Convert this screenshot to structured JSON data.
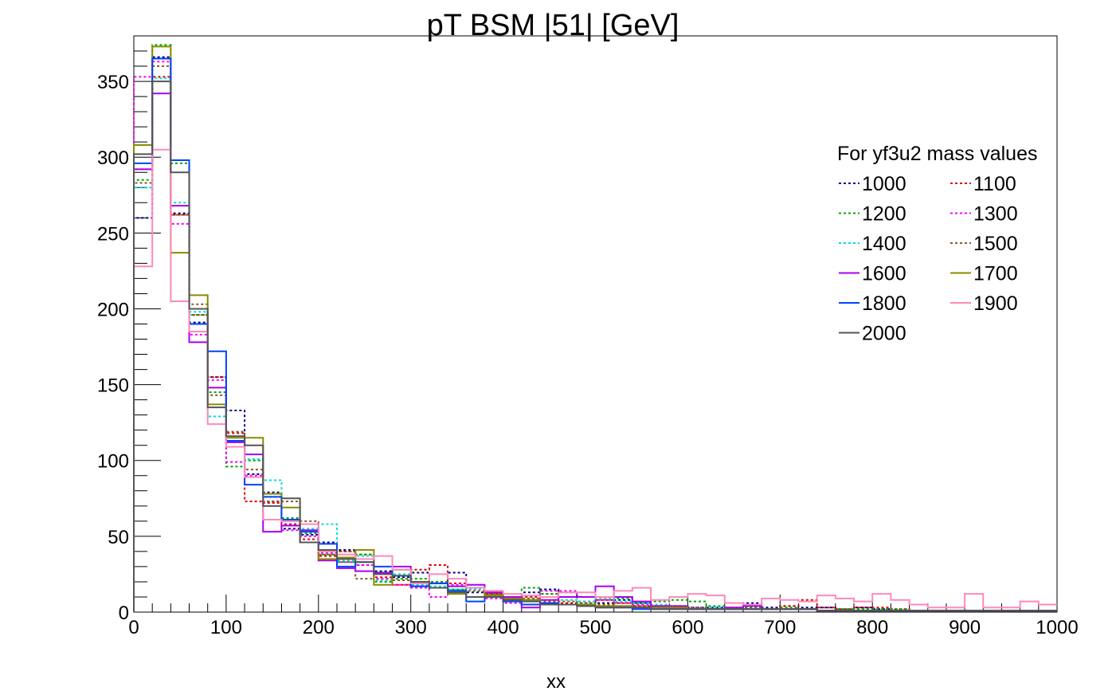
{
  "chart_data": {
    "type": "line",
    "title": "pT BSM |51| [GeV]",
    "xlabel": "xx",
    "ylabel": "",
    "xlim": [
      0,
      1000
    ],
    "ylim": [
      0,
      380
    ],
    "bin_edges": [
      0,
      20,
      40,
      60,
      80,
      100,
      120,
      140,
      160,
      180,
      200,
      220,
      240,
      260,
      280,
      300,
      320,
      340,
      360,
      380,
      400,
      420,
      440,
      460,
      480,
      500,
      520,
      540,
      560,
      580,
      600,
      620,
      640,
      660,
      680,
      700,
      720,
      740,
      760,
      780,
      800,
      820,
      840,
      860,
      880,
      900,
      920,
      940,
      960,
      980,
      1000
    ],
    "x_ticks": [
      0,
      100,
      200,
      300,
      400,
      500,
      600,
      700,
      800,
      900,
      1000
    ],
    "y_ticks": [
      0,
      50,
      100,
      150,
      200,
      250,
      300,
      350
    ],
    "grid": false,
    "legend": {
      "title": "For yf3u2 mass values",
      "placement": "top-right",
      "columns": 2
    },
    "series": [
      {
        "name": "1000",
        "color": "#00008b",
        "dash": "dotted",
        "values": [
          260,
          366,
          263,
          191,
          155,
          133,
          91,
          79,
          55,
          51,
          46,
          41,
          31,
          27,
          23,
          26,
          19,
          26,
          13,
          12,
          8,
          13,
          15,
          13,
          10,
          6,
          8,
          6,
          4,
          4,
          3,
          3,
          2,
          6,
          3,
          4,
          3,
          3,
          2,
          3,
          2,
          1,
          1,
          1,
          1,
          1,
          1,
          1,
          1,
          1
        ]
      },
      {
        "name": "1100",
        "color": "#dd0000",
        "dash": "dotted",
        "values": [
          292,
          353,
          262,
          196,
          155,
          118,
          73,
          72,
          58,
          48,
          37,
          40,
          38,
          23,
          18,
          28,
          31,
          19,
          16,
          12,
          8,
          10,
          12,
          6,
          7,
          8,
          6,
          4,
          4,
          3,
          2,
          3,
          2,
          3,
          2,
          4,
          8,
          3,
          2,
          3,
          3,
          2,
          1,
          1,
          1,
          1,
          1,
          1,
          1,
          1
        ]
      },
      {
        "name": "1200",
        "color": "#00aa00",
        "dash": "dotted",
        "values": [
          285,
          374,
          296,
          196,
          145,
          96,
          100,
          76,
          62,
          52,
          38,
          33,
          38,
          20,
          22,
          22,
          20,
          15,
          16,
          14,
          10,
          16,
          12,
          10,
          6,
          4,
          9,
          6,
          7,
          8,
          7,
          4,
          3,
          3,
          2,
          3,
          2,
          1,
          2,
          2,
          2,
          2,
          1,
          1,
          1,
          1,
          1,
          1,
          1,
          1
        ]
      },
      {
        "name": "1300",
        "color": "#ff00ff",
        "dash": "dotted",
        "values": [
          353,
          363,
          256,
          183,
          153,
          99,
          90,
          73,
          54,
          50,
          39,
          33,
          31,
          22,
          18,
          16,
          10,
          18,
          16,
          9,
          6,
          8,
          14,
          14,
          10,
          8,
          6,
          5,
          4,
          3,
          3,
          2,
          2,
          2,
          2,
          2,
          2,
          1,
          1,
          1,
          1,
          1,
          1,
          1,
          1,
          1,
          1,
          1,
          1,
          1
        ]
      },
      {
        "name": "1400",
        "color": "#00dddd",
        "dash": "dotted",
        "values": [
          280,
          352,
          270,
          198,
          129,
          112,
          101,
          87,
          61,
          55,
          58,
          34,
          37,
          21,
          25,
          18,
          17,
          15,
          15,
          12,
          10,
          9,
          10,
          8,
          7,
          9,
          7,
          6,
          5,
          4,
          3,
          3,
          2,
          2,
          2,
          2,
          2,
          1,
          1,
          1,
          1,
          1,
          1,
          1,
          1,
          1,
          1,
          1,
          1,
          1
        ]
      },
      {
        "name": "1500",
        "color": "#8b5a2b",
        "dash": "dotted",
        "values": [
          283,
          360,
          262,
          203,
          143,
          119,
          94,
          73,
          73,
          60,
          38,
          40,
          22,
          25,
          21,
          20,
          19,
          14,
          14,
          12,
          10,
          9,
          7,
          7,
          6,
          5,
          4,
          4,
          4,
          3,
          3,
          2,
          2,
          2,
          2,
          2,
          2,
          1,
          1,
          1,
          1,
          1,
          1,
          1,
          1,
          1,
          1,
          1,
          1,
          1
        ]
      },
      {
        "name": "1600",
        "color": "#aa00ee",
        "dash": "solid",
        "values": [
          292,
          342,
          268,
          178,
          148,
          112,
          104,
          53,
          57,
          54,
          34,
          29,
          27,
          26,
          30,
          17,
          16,
          17,
          18,
          13,
          10,
          3,
          8,
          10,
          10,
          17,
          10,
          7,
          4,
          4,
          2,
          2,
          3,
          4,
          2,
          2,
          2,
          1,
          1,
          1,
          1,
          1,
          1,
          1,
          1,
          1,
          1,
          1,
          1,
          1
        ]
      },
      {
        "name": "1700",
        "color": "#8b8b00",
        "dash": "solid",
        "values": [
          308,
          373,
          237,
          209,
          137,
          115,
          115,
          78,
          69,
          46,
          35,
          36,
          41,
          18,
          28,
          20,
          16,
          12,
          16,
          11,
          9,
          8,
          6,
          5,
          5,
          4,
          4,
          3,
          3,
          3,
          2,
          2,
          2,
          2,
          2,
          2,
          2,
          1,
          1,
          1,
          1,
          1,
          1,
          1,
          1,
          1,
          1,
          1,
          1,
          1
        ]
      },
      {
        "name": "1800",
        "color": "#0044ff",
        "dash": "solid",
        "values": [
          296,
          365,
          298,
          190,
          172,
          113,
          84,
          76,
          61,
          53,
          45,
          30,
          33,
          30,
          24,
          17,
          19,
          14,
          7,
          10,
          7,
          5,
          6,
          5,
          4,
          3,
          3,
          2,
          2,
          2,
          2,
          2,
          2,
          2,
          2,
          2,
          2,
          1,
          1,
          1,
          1,
          1,
          1,
          1,
          1,
          1,
          1,
          1,
          1,
          1
        ]
      },
      {
        "name": "1900",
        "color": "#ff88bb",
        "dash": "solid",
        "values": [
          228,
          305,
          205,
          185,
          124,
          109,
          89,
          61,
          60,
          58,
          40,
          38,
          35,
          37,
          28,
          19,
          25,
          22,
          16,
          14,
          12,
          11,
          10,
          13,
          13,
          10,
          14,
          16,
          8,
          10,
          12,
          11,
          6,
          5,
          9,
          8,
          7,
          11,
          9,
          7,
          12,
          8,
          5,
          3,
          3,
          12,
          3,
          3,
          7,
          5
        ]
      },
      {
        "name": "2000",
        "color": "#555555",
        "dash": "solid",
        "values": [
          302,
          350,
          290,
          200,
          135,
          116,
          110,
          70,
          75,
          46,
          41,
          35,
          33,
          25,
          24,
          20,
          16,
          13,
          10,
          10,
          8,
          7,
          5,
          5,
          4,
          3,
          3,
          3,
          2,
          2,
          2,
          2,
          2,
          2,
          2,
          2,
          2,
          1,
          1,
          1,
          1,
          1,
          1,
          1,
          1,
          1,
          1,
          1,
          1,
          1
        ]
      }
    ]
  }
}
